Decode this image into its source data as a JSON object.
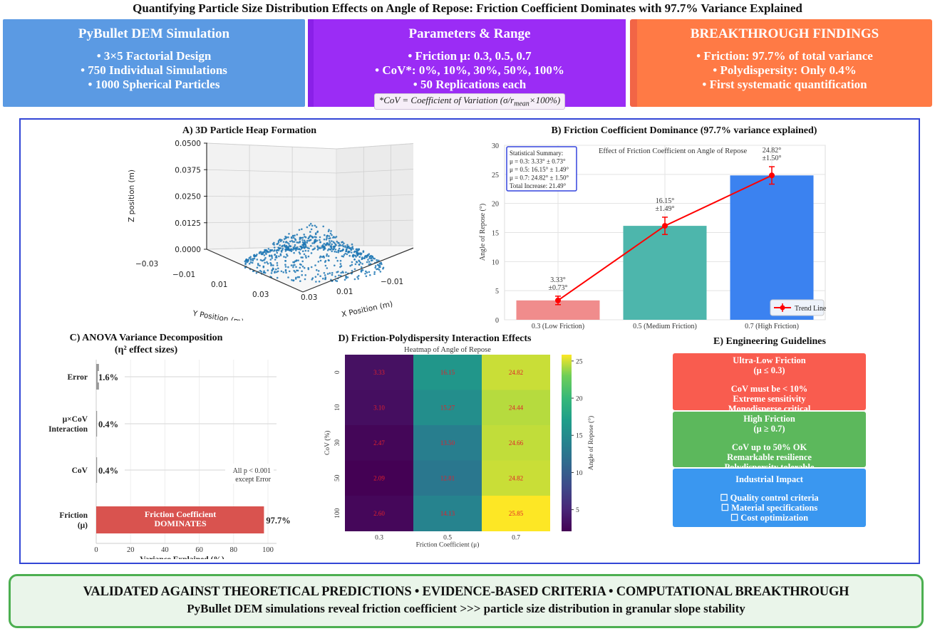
{
  "title": "Quantifying Particle Size Distribution Effects on Angle of Repose: Friction Coefficient Dominates with 97.7% Variance Explained",
  "header_boxes": [
    {
      "title": "PyBullet DEM Simulation",
      "lines": [
        "• 3×5 Factorial Design",
        "• 750 Individual Simulations",
        "• 1000 Spherical Particles"
      ],
      "color": "#5b9ae3"
    },
    {
      "title": "Parameters & Range",
      "lines": [
        "• Friction μ: 0.3, 0.5, 0.7",
        "• CoV*: 0%, 10%, 30%, 50%, 100%",
        "• 50 Replications each"
      ],
      "note_prefix": "*CoV = Coefficient of Variation (σ/r",
      "note_sub": "mean",
      "note_suffix": "×100%)",
      "color": "#9b2cf5"
    },
    {
      "title": "BREAKTHROUGH FINDINGS",
      "lines": [
        "• Friction: 97.7% of total variance",
        "• Polydispersity: Only 0.4%",
        "• First systematic quantification"
      ],
      "color": "#ff7a45"
    }
  ],
  "panels": {
    "a_title": "A) 3D Particle Heap Formation",
    "b_title": "B) Friction Coefficient Dominance (97.7% variance explained)",
    "c_title_1": "C) ANOVA Variance Decomposition",
    "c_title_2": "(η² effect sizes)",
    "d_title": "D) Friction-Polydispersity Interaction Effects",
    "e_title": "E) Engineering Guidelines"
  },
  "chart_data": [
    {
      "id": "A",
      "type": "scatter",
      "title": "A) 3D Particle Heap Formation",
      "xlabel": "X Position (m)",
      "ylabel": "Y Position (m)",
      "zlabel": "Z position (m)",
      "x_ticks": [
        "−0.03",
        "−0.01",
        "0.01",
        "0.03"
      ],
      "y_ticks": [
        "−0.03",
        "−0.01",
        "0.01",
        "0.03"
      ],
      "z_ticks": [
        "0.0000",
        "0.0125",
        "0.0250",
        "0.0375",
        "0.0500"
      ],
      "zlim": [
        0,
        0.05
      ],
      "n_points": 1000,
      "point_color": "#1f77b4",
      "description": "conical heap of particles centered near origin, peak height ~0.012 m"
    },
    {
      "id": "B",
      "type": "bar",
      "title": "Effect of Friction Coefficient on Angle of Repose",
      "ylabel": "Angle of Repose (°)",
      "xlabel": "",
      "categories": [
        "0.3 (Low Friction)",
        "0.5 (Medium Friction)",
        "0.7 (High Friction)"
      ],
      "values": [
        3.33,
        16.15,
        24.82
      ],
      "errors": [
        0.73,
        1.49,
        1.5
      ],
      "bar_labels": [
        [
          "3.33°",
          "±0.73°"
        ],
        [
          "16.15°",
          "±1.49°"
        ],
        [
          "24.82°",
          "±1.50°"
        ]
      ],
      "colors": [
        "#f08c8c",
        "#4db6ac",
        "#3b82f0"
      ],
      "ylim": [
        0,
        30
      ],
      "y_ticks": [
        0,
        5,
        10,
        15,
        20,
        25,
        30
      ],
      "trend_line": {
        "name": "Trend Line",
        "color": "#ff0000"
      },
      "legend": "bottom-right",
      "summary_box": [
        "Statistical Summary:",
        "μ = 0.3: 3.33° ± 0.73°",
        "μ = 0.5: 16.15° ± 1.49°",
        "μ = 0.7: 24.82° ± 1.50°",
        "Total Increase: 21.49°"
      ],
      "grid": true
    },
    {
      "id": "C",
      "type": "bar",
      "orientation": "horizontal",
      "title": "C) ANOVA Variance Decomposition (η² effect sizes)",
      "xlabel": "Variance Explained (%)",
      "categories": [
        [
          "Error"
        ],
        [
          "μ×CoV",
          "Interaction"
        ],
        [
          "CoV"
        ],
        [
          "Friction",
          "(μ)"
        ]
      ],
      "values": [
        1.6,
        0.4,
        0.4,
        97.7
      ],
      "value_labels": [
        "1.6%",
        "0.4%",
        "0.4%",
        "97.7%"
      ],
      "xlim": [
        0,
        105
      ],
      "x_ticks": [
        0,
        20,
        40,
        60,
        80,
        100
      ],
      "bar_inner_label": [
        "Friction Coefficient",
        "DOMINATES"
      ],
      "annotation": [
        "All p < 0.001",
        "except Error"
      ],
      "colors": [
        "#999999",
        "#999999",
        "#999999",
        "#d9534f"
      ]
    },
    {
      "id": "D",
      "type": "heatmap",
      "title": "Heatmap of Angle of Repose",
      "xlabel": "Friction Coefficient (μ)",
      "ylabel": "CoV (%)",
      "x": [
        "0.3",
        "0.5",
        "0.7"
      ],
      "y": [
        "0",
        "10",
        "30",
        "50",
        "100"
      ],
      "values": [
        [
          3.33,
          16.15,
          24.82
        ],
        [
          3.1,
          15.27,
          24.44
        ],
        [
          2.47,
          13.5,
          24.66
        ],
        [
          2.09,
          12.81,
          24.82
        ],
        [
          2.6,
          14.13,
          25.85
        ]
      ],
      "colorbar": {
        "label": "Angle of Repose (°)",
        "ticks": [
          5,
          10,
          15,
          20,
          25
        ],
        "range": [
          2.09,
          25.85
        ],
        "colormap": "viridis"
      },
      "annotation_color": "#e0212b"
    }
  ],
  "guidelines": [
    {
      "title": "Ultra-Low Friction",
      "subtitle": "(μ ≤ 0.3)",
      "lines": [
        "CoV must be < 10%",
        "Extreme sensitivity",
        "Monodisperse critical"
      ],
      "color": "#f95c4f"
    },
    {
      "title": "High Friction",
      "subtitle": "(μ ≥ 0.7)",
      "lines": [
        "CoV up to 50% OK",
        "Remarkable resilience",
        "Polydispersity tolerable"
      ],
      "color": "#5cb85c"
    },
    {
      "title": "Industrial Impact",
      "subtitle": "",
      "lines": [
        "☐ Quality control criteria",
        "☐ Material specifications",
        "☐ Cost optimization"
      ],
      "color": "#3a97f0"
    }
  ],
  "footer": {
    "line1": "VALIDATED AGAINST THEORETICAL PREDICTIONS • EVIDENCE-BASED CRITERIA • COMPUTATIONAL BREAKTHROUGH",
    "line2": "PyBullet DEM simulations reveal friction coefficient >>> particle size distribution in granular slope stability"
  }
}
